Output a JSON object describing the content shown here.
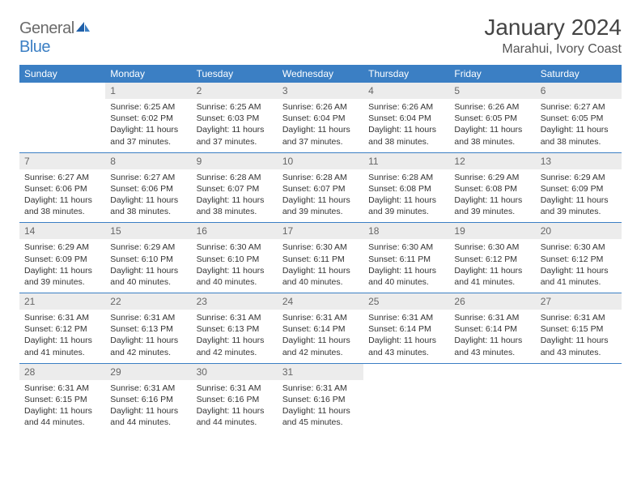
{
  "logo": {
    "text1": "General",
    "text2": "Blue"
  },
  "header": {
    "title": "January 2024",
    "location": "Marahui, Ivory Coast"
  },
  "colors": {
    "accent": "#3b7fc4",
    "header_bg": "#3b7fc4",
    "header_text": "#ffffff",
    "daynum_bg": "#ececec",
    "daynum_text": "#666666",
    "body_text": "#333333",
    "logo_gray": "#6b6b6b",
    "logo_blue": "#3b7fc4"
  },
  "weekdays": [
    "Sunday",
    "Monday",
    "Tuesday",
    "Wednesday",
    "Thursday",
    "Friday",
    "Saturday"
  ],
  "layout": {
    "first_weekday_index": 1,
    "days_in_month": 31
  },
  "days": {
    "1": {
      "sunrise": "6:25 AM",
      "sunset": "6:02 PM",
      "daylight": "11 hours and 37 minutes."
    },
    "2": {
      "sunrise": "6:25 AM",
      "sunset": "6:03 PM",
      "daylight": "11 hours and 37 minutes."
    },
    "3": {
      "sunrise": "6:26 AM",
      "sunset": "6:04 PM",
      "daylight": "11 hours and 37 minutes."
    },
    "4": {
      "sunrise": "6:26 AM",
      "sunset": "6:04 PM",
      "daylight": "11 hours and 38 minutes."
    },
    "5": {
      "sunrise": "6:26 AM",
      "sunset": "6:05 PM",
      "daylight": "11 hours and 38 minutes."
    },
    "6": {
      "sunrise": "6:27 AM",
      "sunset": "6:05 PM",
      "daylight": "11 hours and 38 minutes."
    },
    "7": {
      "sunrise": "6:27 AM",
      "sunset": "6:06 PM",
      "daylight": "11 hours and 38 minutes."
    },
    "8": {
      "sunrise": "6:27 AM",
      "sunset": "6:06 PM",
      "daylight": "11 hours and 38 minutes."
    },
    "9": {
      "sunrise": "6:28 AM",
      "sunset": "6:07 PM",
      "daylight": "11 hours and 38 minutes."
    },
    "10": {
      "sunrise": "6:28 AM",
      "sunset": "6:07 PM",
      "daylight": "11 hours and 39 minutes."
    },
    "11": {
      "sunrise": "6:28 AM",
      "sunset": "6:08 PM",
      "daylight": "11 hours and 39 minutes."
    },
    "12": {
      "sunrise": "6:29 AM",
      "sunset": "6:08 PM",
      "daylight": "11 hours and 39 minutes."
    },
    "13": {
      "sunrise": "6:29 AM",
      "sunset": "6:09 PM",
      "daylight": "11 hours and 39 minutes."
    },
    "14": {
      "sunrise": "6:29 AM",
      "sunset": "6:09 PM",
      "daylight": "11 hours and 39 minutes."
    },
    "15": {
      "sunrise": "6:29 AM",
      "sunset": "6:10 PM",
      "daylight": "11 hours and 40 minutes."
    },
    "16": {
      "sunrise": "6:30 AM",
      "sunset": "6:10 PM",
      "daylight": "11 hours and 40 minutes."
    },
    "17": {
      "sunrise": "6:30 AM",
      "sunset": "6:11 PM",
      "daylight": "11 hours and 40 minutes."
    },
    "18": {
      "sunrise": "6:30 AM",
      "sunset": "6:11 PM",
      "daylight": "11 hours and 40 minutes."
    },
    "19": {
      "sunrise": "6:30 AM",
      "sunset": "6:12 PM",
      "daylight": "11 hours and 41 minutes."
    },
    "20": {
      "sunrise": "6:30 AM",
      "sunset": "6:12 PM",
      "daylight": "11 hours and 41 minutes."
    },
    "21": {
      "sunrise": "6:31 AM",
      "sunset": "6:12 PM",
      "daylight": "11 hours and 41 minutes."
    },
    "22": {
      "sunrise": "6:31 AM",
      "sunset": "6:13 PM",
      "daylight": "11 hours and 42 minutes."
    },
    "23": {
      "sunrise": "6:31 AM",
      "sunset": "6:13 PM",
      "daylight": "11 hours and 42 minutes."
    },
    "24": {
      "sunrise": "6:31 AM",
      "sunset": "6:14 PM",
      "daylight": "11 hours and 42 minutes."
    },
    "25": {
      "sunrise": "6:31 AM",
      "sunset": "6:14 PM",
      "daylight": "11 hours and 43 minutes."
    },
    "26": {
      "sunrise": "6:31 AM",
      "sunset": "6:14 PM",
      "daylight": "11 hours and 43 minutes."
    },
    "27": {
      "sunrise": "6:31 AM",
      "sunset": "6:15 PM",
      "daylight": "11 hours and 43 minutes."
    },
    "28": {
      "sunrise": "6:31 AM",
      "sunset": "6:15 PM",
      "daylight": "11 hours and 44 minutes."
    },
    "29": {
      "sunrise": "6:31 AM",
      "sunset": "6:16 PM",
      "daylight": "11 hours and 44 minutes."
    },
    "30": {
      "sunrise": "6:31 AM",
      "sunset": "6:16 PM",
      "daylight": "11 hours and 44 minutes."
    },
    "31": {
      "sunrise": "6:31 AM",
      "sunset": "6:16 PM",
      "daylight": "11 hours and 45 minutes."
    }
  },
  "labels": {
    "sunrise": "Sunrise:",
    "sunset": "Sunset:",
    "daylight": "Daylight:"
  }
}
